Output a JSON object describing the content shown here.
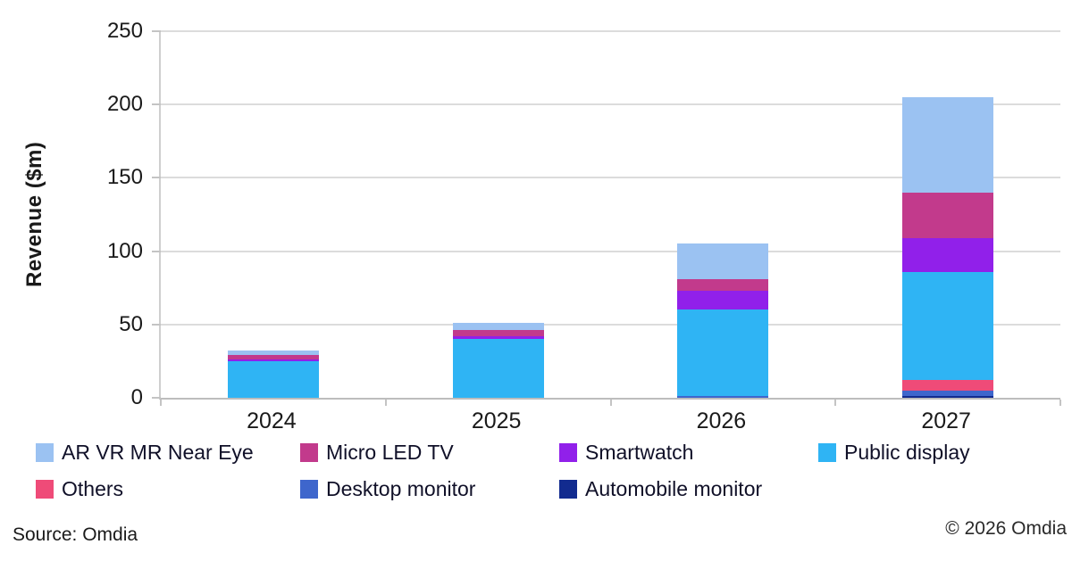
{
  "chart_data": {
    "type": "bar",
    "stacked": true,
    "title": "",
    "xlabel": "",
    "ylabel": "Revenue ($m)",
    "ylim": [
      0,
      250
    ],
    "yticks": [
      0,
      50,
      100,
      150,
      200,
      250
    ],
    "grid": true,
    "legend_position": "bottom",
    "categories": [
      "2024",
      "2025",
      "2026",
      "2027"
    ],
    "series": [
      {
        "name": "AR VR MR Near Eye",
        "color": "#9BC2F2",
        "values": [
          3,
          5,
          24,
          65
        ]
      },
      {
        "name": "Micro LED TV",
        "color": "#C23A8C",
        "values": [
          3,
          4,
          8,
          31
        ]
      },
      {
        "name": "Smartwatch",
        "color": "#9120EA",
        "values": [
          1,
          2,
          13,
          23
        ]
      },
      {
        "name": "Public display",
        "color": "#2FB4F4",
        "values": [
          25,
          40,
          59,
          74
        ]
      },
      {
        "name": "Others",
        "color": "#EF4B78",
        "values": [
          0,
          0,
          0,
          7
        ]
      },
      {
        "name": "Desktop monitor",
        "color": "#3E66CC",
        "values": [
          0,
          0,
          1,
          4
        ]
      },
      {
        "name": "Automobile monitor",
        "color": "#122B8F",
        "values": [
          0,
          0,
          0,
          1
        ]
      }
    ],
    "stack_order_bottom_to_top": [
      "Automobile monitor",
      "Desktop monitor",
      "Others",
      "Public display",
      "Smartwatch",
      "Micro LED TV",
      "AR VR MR Near Eye"
    ]
  },
  "footer": {
    "source": "Source: Omdia",
    "copyright": "© 2026 Omdia"
  }
}
